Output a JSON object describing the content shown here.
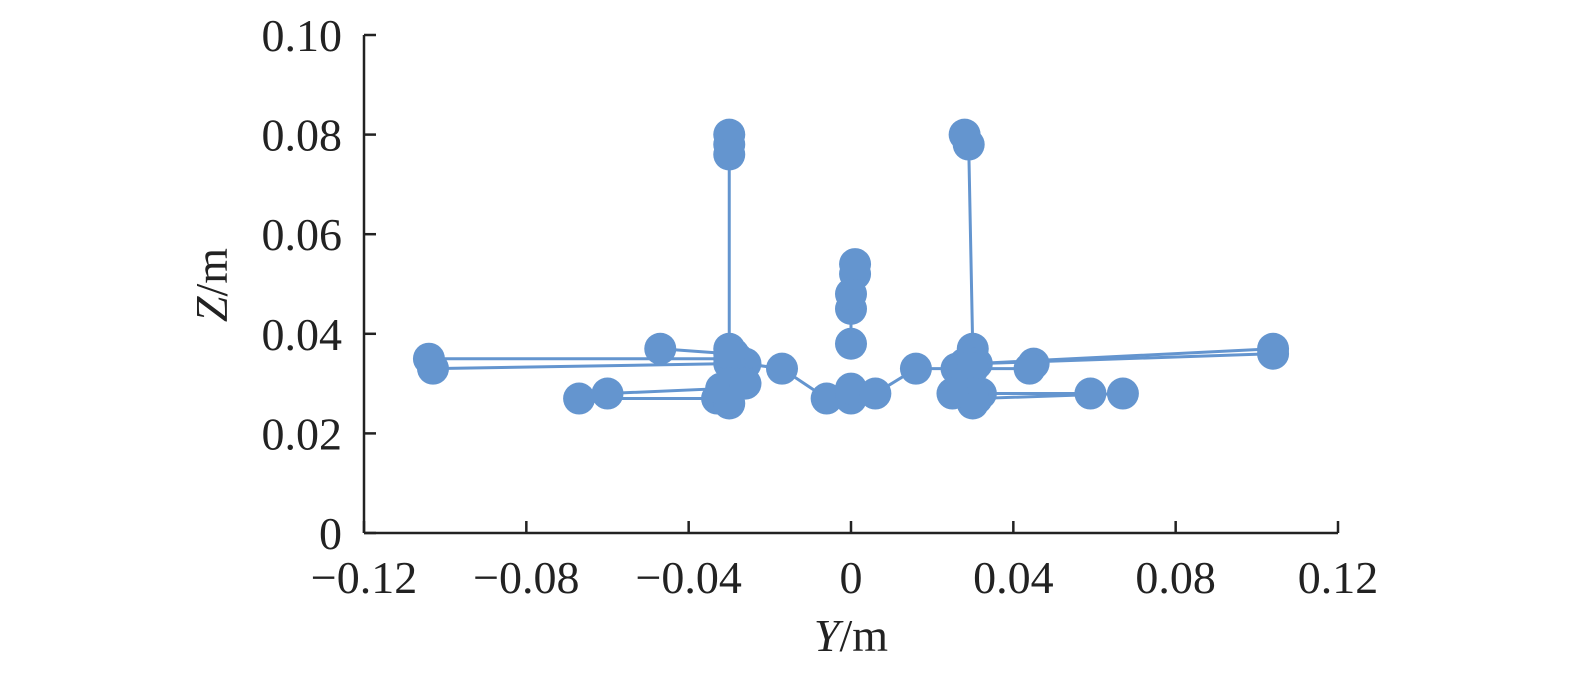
{
  "chart_data": {
    "type": "scatter",
    "xlabel": {
      "var": "Y",
      "unit": "/m"
    },
    "ylabel": {
      "var": "Z",
      "unit": "/m"
    },
    "xlim": [
      -0.12,
      0.12
    ],
    "ylim": [
      0,
      0.1
    ],
    "x_ticks": [
      -0.12,
      -0.08,
      -0.04,
      0,
      0.04,
      0.08,
      0.12
    ],
    "x_tick_labels": [
      "−0.12",
      "−0.08",
      "−0.04",
      "0",
      "0.04",
      "0.08",
      "0.12"
    ],
    "y_ticks": [
      0,
      0.02,
      0.04,
      0.06,
      0.08,
      0.1
    ],
    "y_tick_labels": [
      "0",
      "0.02",
      "0.04",
      "0.06",
      "0.08",
      "0.10"
    ],
    "grid": false,
    "color": "#6495cf",
    "series": [
      {
        "points": [
          [
            -0.03,
            0.08
          ],
          [
            -0.03,
            0.078
          ],
          [
            -0.03,
            0.076
          ],
          [
            -0.03,
            0.037
          ],
          [
            -0.029,
            0.036
          ],
          [
            -0.028,
            0.035
          ],
          [
            -0.026,
            0.034
          ],
          [
            -0.017,
            0.033
          ],
          [
            -0.006,
            0.027
          ],
          [
            0.0,
            0.027
          ],
          [
            0.0,
            0.029
          ],
          [
            0.006,
            0.028
          ],
          [
            0.016,
            0.033
          ],
          [
            0.026,
            0.033
          ],
          [
            0.028,
            0.034
          ],
          [
            0.03,
            0.035
          ],
          [
            0.03,
            0.037
          ],
          [
            0.029,
            0.078
          ],
          [
            0.028,
            0.08
          ]
        ]
      },
      {
        "points": [
          [
            -0.104,
            0.035
          ],
          [
            -0.03,
            0.035
          ],
          [
            -0.028,
            0.034
          ]
        ]
      },
      {
        "points": [
          [
            -0.103,
            0.033
          ],
          [
            -0.03,
            0.034
          ]
        ]
      },
      {
        "points": [
          [
            -0.047,
            0.037
          ],
          [
            -0.03,
            0.036
          ]
        ]
      },
      {
        "points": [
          [
            -0.067,
            0.027
          ],
          [
            -0.033,
            0.027
          ],
          [
            -0.03,
            0.026
          ]
        ]
      },
      {
        "points": [
          [
            -0.06,
            0.028
          ],
          [
            -0.032,
            0.029
          ],
          [
            -0.03,
            0.03
          ],
          [
            -0.026,
            0.03
          ]
        ]
      },
      {
        "points": [
          [
            0.0,
            0.038
          ],
          [
            0.0,
            0.045
          ],
          [
            0.0,
            0.048
          ],
          [
            0.001,
            0.052
          ],
          [
            0.001,
            0.054
          ]
        ]
      },
      {
        "points": [
          [
            0.104,
            0.037
          ],
          [
            0.03,
            0.034
          ],
          [
            0.028,
            0.033
          ]
        ]
      },
      {
        "points": [
          [
            0.104,
            0.036
          ],
          [
            0.031,
            0.034
          ]
        ]
      },
      {
        "points": [
          [
            0.045,
            0.034
          ],
          [
            0.044,
            0.033
          ],
          [
            0.03,
            0.033
          ]
        ]
      },
      {
        "points": [
          [
            0.067,
            0.028
          ],
          [
            0.031,
            0.027
          ],
          [
            0.03,
            0.026
          ]
        ]
      },
      {
        "points": [
          [
            0.059,
            0.028
          ],
          [
            0.032,
            0.028
          ],
          [
            0.03,
            0.028
          ],
          [
            0.025,
            0.028
          ]
        ]
      }
    ]
  }
}
